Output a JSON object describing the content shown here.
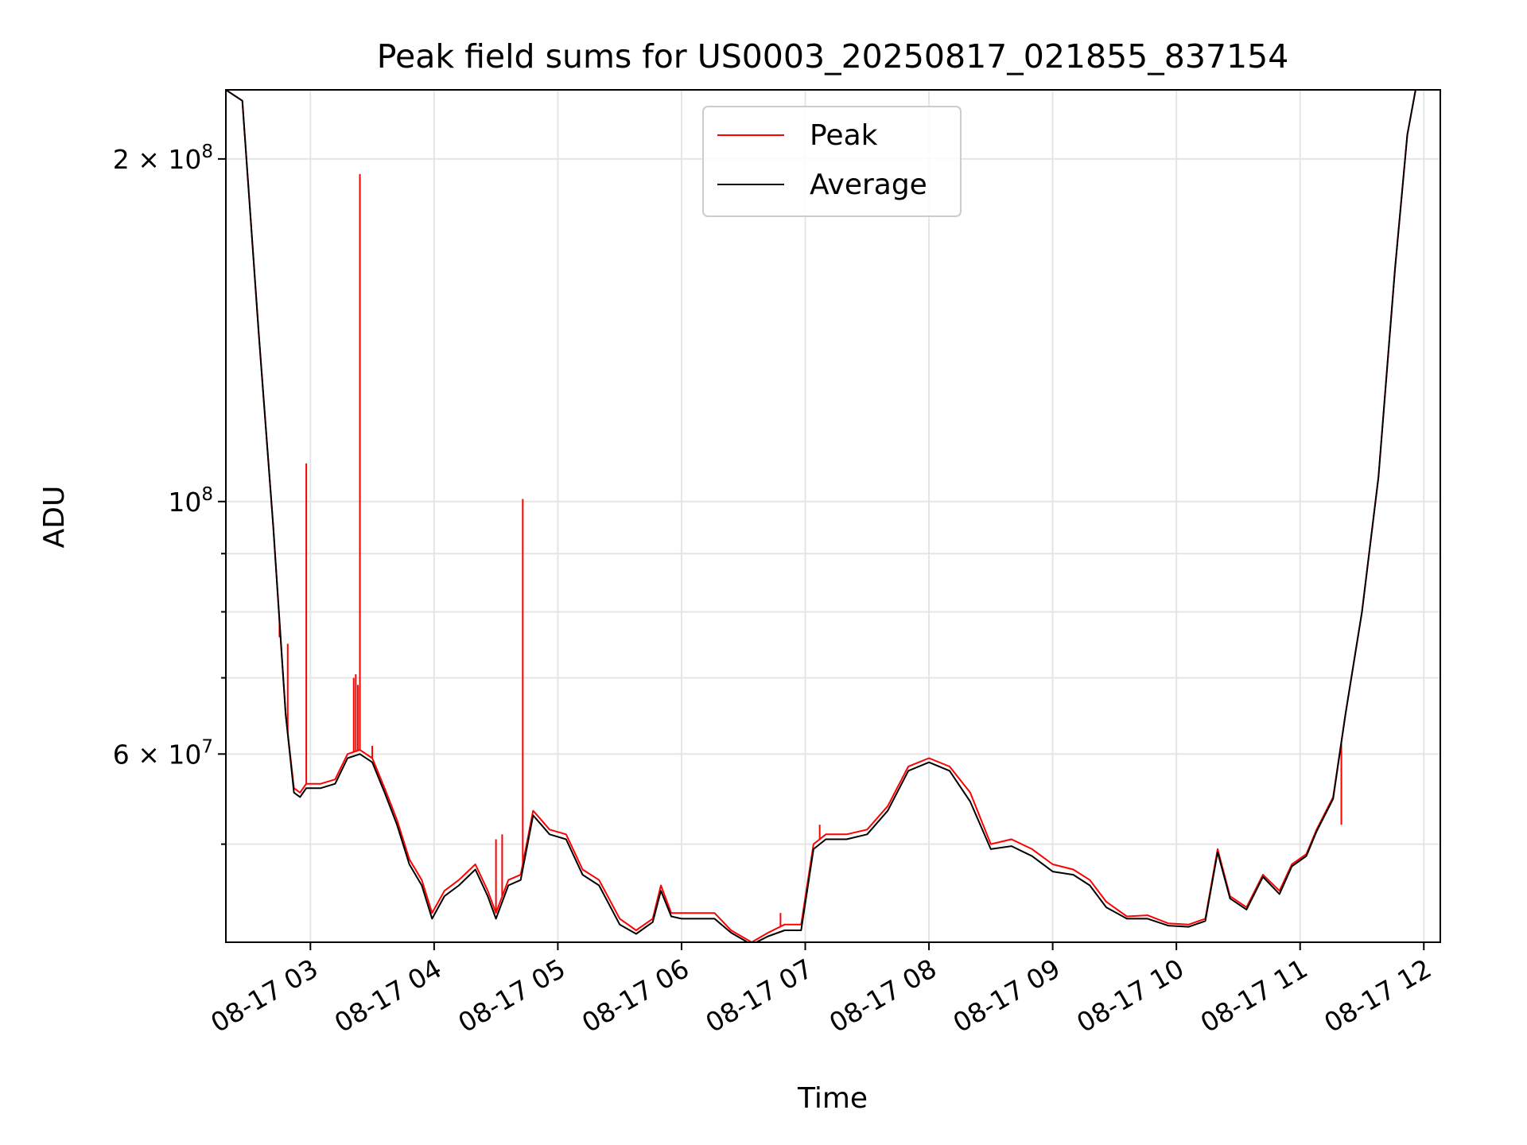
{
  "chart_data": {
    "type": "line",
    "title": "Peak field sums for US0003_20250817_021855_837154",
    "xlabel": "Time",
    "ylabel": "ADU",
    "yscale": "log",
    "ylim": [
      41000000,
      230000000
    ],
    "xlim": [
      "2025-08-17 02:19",
      "2025-08-17 12:08"
    ],
    "grid": true,
    "legend_position": "top-center",
    "x_ticks": [
      "08-17 03",
      "08-17 04",
      "08-17 05",
      "08-17 06",
      "08-17 07",
      "08-17 08",
      "08-17 09",
      "08-17 10",
      "08-17 11",
      "08-17 12"
    ],
    "y_ticks": [
      {
        "value": 60000000,
        "label": "6 × 10^7",
        "base": "6 × 10",
        "exp": "7"
      },
      {
        "value": 100000000,
        "label": "10^8",
        "base": "10",
        "exp": "8"
      },
      {
        "value": 200000000,
        "label": "2 × 10^8",
        "base": "2 × 10",
        "exp": "8"
      }
    ],
    "y_minor_ticks": [
      50000000,
      70000000,
      80000000,
      90000000
    ],
    "series": [
      {
        "name": "Peak",
        "color": "#ff0000",
        "x": [
          "2025-08-17 02:19",
          "2025-08-17 02:27",
          "2025-08-17 02:35",
          "2025-08-17 02:42",
          "2025-08-17 02:48",
          "2025-08-17 02:52",
          "2025-08-17 02:55",
          "2025-08-17 02:58",
          "2025-08-17 03:05",
          "2025-08-17 03:12",
          "2025-08-17 03:18",
          "2025-08-17 03:24",
          "2025-08-17 03:30",
          "2025-08-17 03:36",
          "2025-08-17 03:42",
          "2025-08-17 03:48",
          "2025-08-17 03:54",
          "2025-08-17 03:59",
          "2025-08-17 04:05",
          "2025-08-17 04:12",
          "2025-08-17 04:20",
          "2025-08-17 04:26",
          "2025-08-17 04:30",
          "2025-08-17 04:36",
          "2025-08-17 04:42",
          "2025-08-17 04:48",
          "2025-08-17 04:52",
          "2025-08-17 04:56",
          "2025-08-17 05:04",
          "2025-08-17 05:12",
          "2025-08-17 05:20",
          "2025-08-17 05:30",
          "2025-08-17 05:38",
          "2025-08-17 05:46",
          "2025-08-17 05:50",
          "2025-08-17 05:55",
          "2025-08-17 06:00",
          "2025-08-17 06:08",
          "2025-08-17 06:16",
          "2025-08-17 06:24",
          "2025-08-17 06:34",
          "2025-08-17 06:42",
          "2025-08-17 06:50",
          "2025-08-17 06:58",
          "2025-08-17 07:04",
          "2025-08-17 07:10",
          "2025-08-17 07:20",
          "2025-08-17 07:30",
          "2025-08-17 07:40",
          "2025-08-17 07:50",
          "2025-08-17 08:00",
          "2025-08-17 08:10",
          "2025-08-17 08:20",
          "2025-08-17 08:30",
          "2025-08-17 08:40",
          "2025-08-17 08:50",
          "2025-08-17 09:00",
          "2025-08-17 09:10",
          "2025-08-17 09:18",
          "2025-08-17 09:26",
          "2025-08-17 09:36",
          "2025-08-17 09:46",
          "2025-08-17 09:56",
          "2025-08-17 10:06",
          "2025-08-17 10:14",
          "2025-08-17 10:20",
          "2025-08-17 10:26",
          "2025-08-17 10:34",
          "2025-08-17 10:42",
          "2025-08-17 10:50",
          "2025-08-17 10:56",
          "2025-08-17 11:03",
          "2025-08-17 11:08",
          "2025-08-17 11:16",
          "2025-08-17 11:22",
          "2025-08-17 11:30",
          "2025-08-17 11:38",
          "2025-08-17 11:46",
          "2025-08-17 11:52",
          "2025-08-17 11:56"
        ],
        "values": [
          230000000,
          225000000,
          140000000,
          95000000,
          65000000,
          56000000,
          55500000,
          56500000,
          56500000,
          57000000,
          60000000,
          60500000,
          59500000,
          56000000,
          52500000,
          48500000,
          46500000,
          43500000,
          45500000,
          46500000,
          48000000,
          45500000,
          43500000,
          46500000,
          47000000,
          53500000,
          52500000,
          51500000,
          51000000,
          47500000,
          46500000,
          43000000,
          42000000,
          43000000,
          46000000,
          43500000,
          43500000,
          43500000,
          43500000,
          42000000,
          41000000,
          41800000,
          42500000,
          42500000,
          50000000,
          51000000,
          51000000,
          51500000,
          54000000,
          58500000,
          59500000,
          58500000,
          55500000,
          50000000,
          50500000,
          49500000,
          48000000,
          47500000,
          46500000,
          44500000,
          43200000,
          43300000,
          42600000,
          42500000,
          43000000,
          49500000,
          45000000,
          44000000,
          47000000,
          45500000,
          48000000,
          49000000,
          51500000,
          55000000,
          65000000,
          80000000,
          105000000,
          160000000,
          210000000,
          230000000
        ],
        "spikes": [
          {
            "x": "2025-08-17 02:45",
            "value": 76000000
          },
          {
            "x": "2025-08-17 02:49",
            "value": 75000000
          },
          {
            "x": "2025-08-17 02:58",
            "value": 108000000
          },
          {
            "x": "2025-08-17 03:21",
            "value": 70000000
          },
          {
            "x": "2025-08-17 03:22",
            "value": 70500000
          },
          {
            "x": "2025-08-17 03:23",
            "value": 69000000
          },
          {
            "x": "2025-08-17 03:24",
            "value": 194000000
          },
          {
            "x": "2025-08-17 03:30",
            "value": 61000000
          },
          {
            "x": "2025-08-17 04:30",
            "value": 50500000
          },
          {
            "x": "2025-08-17 04:33",
            "value": 51000000
          },
          {
            "x": "2025-08-17 04:43",
            "value": 100500000
          },
          {
            "x": "2025-08-17 06:48",
            "value": 43500000
          },
          {
            "x": "2025-08-17 07:07",
            "value": 52000000
          },
          {
            "x": "2025-08-17 10:53",
            "value": 46500000
          },
          {
            "x": "2025-08-17 11:00",
            "value": 48500000
          },
          {
            "x": "2025-08-17 11:20",
            "value": 52000000
          }
        ]
      },
      {
        "name": "Average",
        "color": "#000000",
        "x": [
          "2025-08-17 02:19",
          "2025-08-17 02:27",
          "2025-08-17 02:35",
          "2025-08-17 02:42",
          "2025-08-17 02:48",
          "2025-08-17 02:52",
          "2025-08-17 02:55",
          "2025-08-17 02:58",
          "2025-08-17 03:05",
          "2025-08-17 03:12",
          "2025-08-17 03:18",
          "2025-08-17 03:24",
          "2025-08-17 03:30",
          "2025-08-17 03:36",
          "2025-08-17 03:42",
          "2025-08-17 03:48",
          "2025-08-17 03:54",
          "2025-08-17 03:59",
          "2025-08-17 04:05",
          "2025-08-17 04:12",
          "2025-08-17 04:20",
          "2025-08-17 04:26",
          "2025-08-17 04:30",
          "2025-08-17 04:36",
          "2025-08-17 04:42",
          "2025-08-17 04:48",
          "2025-08-17 04:52",
          "2025-08-17 04:56",
          "2025-08-17 05:04",
          "2025-08-17 05:12",
          "2025-08-17 05:20",
          "2025-08-17 05:30",
          "2025-08-17 05:38",
          "2025-08-17 05:46",
          "2025-08-17 05:50",
          "2025-08-17 05:55",
          "2025-08-17 06:00",
          "2025-08-17 06:08",
          "2025-08-17 06:16",
          "2025-08-17 06:24",
          "2025-08-17 06:34",
          "2025-08-17 06:42",
          "2025-08-17 06:50",
          "2025-08-17 06:58",
          "2025-08-17 07:04",
          "2025-08-17 07:10",
          "2025-08-17 07:20",
          "2025-08-17 07:30",
          "2025-08-17 07:40",
          "2025-08-17 07:50",
          "2025-08-17 08:00",
          "2025-08-17 08:10",
          "2025-08-17 08:20",
          "2025-08-17 08:30",
          "2025-08-17 08:40",
          "2025-08-17 08:50",
          "2025-08-17 09:00",
          "2025-08-17 09:10",
          "2025-08-17 09:18",
          "2025-08-17 09:26",
          "2025-08-17 09:36",
          "2025-08-17 09:46",
          "2025-08-17 09:56",
          "2025-08-17 10:06",
          "2025-08-17 10:14",
          "2025-08-17 10:20",
          "2025-08-17 10:26",
          "2025-08-17 10:34",
          "2025-08-17 10:42",
          "2025-08-17 10:50",
          "2025-08-17 10:56",
          "2025-08-17 11:03",
          "2025-08-17 11:08",
          "2025-08-17 11:16",
          "2025-08-17 11:22",
          "2025-08-17 11:30",
          "2025-08-17 11:38",
          "2025-08-17 11:46",
          "2025-08-17 11:52",
          "2025-08-17 11:56"
        ],
        "values": [
          230000000,
          225000000,
          140000000,
          95000000,
          65000000,
          55500000,
          55000000,
          56000000,
          56000000,
          56500000,
          59500000,
          60000000,
          59000000,
          55500000,
          52000000,
          48000000,
          46000000,
          43000000,
          45000000,
          46000000,
          47500000,
          45000000,
          43000000,
          46000000,
          46500000,
          53000000,
          52000000,
          51000000,
          50500000,
          47000000,
          46000000,
          42500000,
          41700000,
          42700000,
          45500000,
          43200000,
          43000000,
          43000000,
          43000000,
          41800000,
          40800000,
          41500000,
          42000000,
          42000000,
          49500000,
          50500000,
          50500000,
          51000000,
          53500000,
          58000000,
          59000000,
          58000000,
          54500000,
          49500000,
          49800000,
          48800000,
          47300000,
          47000000,
          46000000,
          44000000,
          43000000,
          43000000,
          42400000,
          42300000,
          42800000,
          49200000,
          44800000,
          43800000,
          46800000,
          45200000,
          47800000,
          48800000,
          51300000,
          54800000,
          65000000,
          80000000,
          105000000,
          160000000,
          210000000,
          230000000
        ]
      }
    ]
  }
}
